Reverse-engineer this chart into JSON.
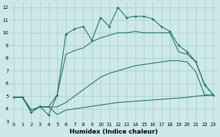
{
  "xlabel": "Humidex (Indice chaleur)",
  "background_color": "#cde8e8",
  "grid_color": "#aacccc",
  "line_color": "#1a6b6b",
  "xlim": [
    -0.5,
    23.5
  ],
  "ylim": [
    3,
    12.4
  ],
  "x_ticks": [
    0,
    1,
    2,
    3,
    4,
    5,
    6,
    7,
    8,
    9,
    10,
    11,
    12,
    13,
    14,
    15,
    16,
    17,
    18,
    19,
    20,
    21,
    22,
    23
  ],
  "y_ticks": [
    3,
    4,
    5,
    6,
    7,
    8,
    9,
    10,
    11,
    12
  ],
  "line1_x": [
    0,
    1,
    2,
    3,
    4,
    5,
    6,
    7,
    8,
    9,
    10,
    11,
    12,
    13,
    14,
    15,
    16,
    17,
    18,
    19,
    20,
    21,
    22,
    23
  ],
  "line1_y": [
    4.9,
    4.9,
    3.9,
    4.15,
    4.15,
    3.55,
    3.9,
    4.0,
    4.1,
    4.2,
    4.3,
    4.4,
    4.5,
    4.55,
    4.6,
    4.65,
    4.7,
    4.75,
    4.8,
    4.85,
    4.9,
    5.0,
    5.05,
    5.1
  ],
  "line2_x": [
    0,
    1,
    2,
    3,
    4,
    5,
    6,
    7,
    8,
    9,
    10,
    11,
    12,
    13,
    14,
    15,
    16,
    17,
    18,
    19,
    20,
    21,
    22,
    23
  ],
  "line2_y": [
    4.9,
    4.9,
    3.9,
    4.15,
    4.15,
    4.15,
    4.5,
    5.0,
    5.5,
    6.0,
    6.5,
    6.8,
    7.0,
    7.2,
    7.4,
    7.5,
    7.6,
    7.7,
    7.8,
    7.8,
    7.7,
    6.9,
    5.1,
    5.1
  ],
  "line3_x": [
    0,
    1,
    2,
    3,
    4,
    5,
    6,
    7,
    8,
    9,
    10,
    11,
    12,
    13,
    14,
    15,
    16,
    17,
    18,
    19,
    20,
    21,
    22,
    23
  ],
  "line3_y": [
    4.9,
    4.9,
    3.9,
    4.15,
    4.15,
    5.1,
    8.3,
    8.6,
    8.8,
    9.3,
    9.6,
    9.8,
    10.0,
    10.0,
    10.1,
    10.0,
    10.0,
    10.0,
    10.0,
    8.5,
    8.3,
    7.7,
    5.9,
    5.1
  ],
  "line4_x": [
    0,
    1,
    2,
    3,
    4,
    5,
    6,
    7,
    8,
    9,
    10,
    11,
    12,
    13,
    14,
    15,
    16,
    17,
    18,
    19,
    20,
    21,
    22,
    23
  ],
  "line4_y": [
    4.9,
    4.9,
    3.7,
    4.2,
    3.5,
    5.1,
    9.9,
    10.3,
    10.5,
    9.4,
    11.2,
    10.5,
    12.0,
    11.2,
    11.3,
    11.3,
    11.1,
    10.5,
    10.1,
    9.0,
    8.5,
    7.7,
    5.9,
    5.1
  ]
}
